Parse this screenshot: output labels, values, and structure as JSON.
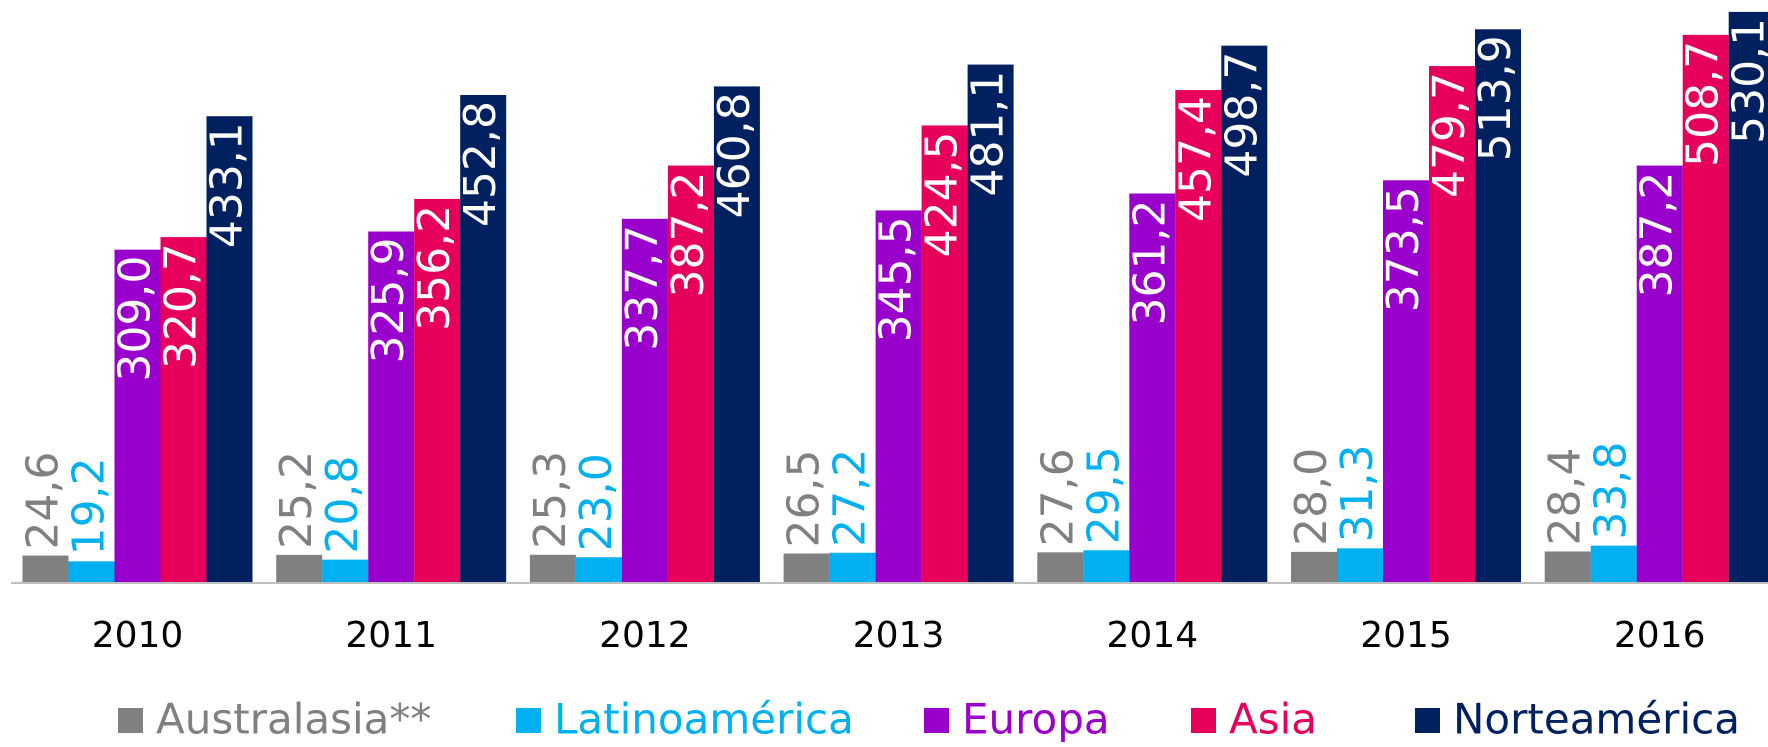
{
  "chart_data": {
    "type": "bar",
    "categories": [
      "2010",
      "2011",
      "2012",
      "2013",
      "2014",
      "2015",
      "2016"
    ],
    "series": [
      {
        "name": "Australasia**",
        "color": "#808080",
        "values": [
          24.6,
          25.2,
          25.3,
          26.5,
          27.6,
          28.0,
          28.4
        ],
        "value_labels": [
          "24,6",
          "25,2",
          "25,3",
          "26,5",
          "27,6",
          "28,0",
          "28,4"
        ]
      },
      {
        "name": "Latinoamérica",
        "color": "#00b0f0",
        "values": [
          19.2,
          20.8,
          23.0,
          27.2,
          29.5,
          31.3,
          33.8
        ],
        "value_labels": [
          "19,2",
          "20,8",
          "23,0",
          "27,2",
          "29,5",
          "31,3",
          "33,8"
        ]
      },
      {
        "name": "Europa",
        "color": "#9900cc",
        "values": [
          309.0,
          325.9,
          337.7,
          345.5,
          361.2,
          373.5,
          387.2
        ],
        "value_labels": [
          "309,0",
          "325,9",
          "337,7",
          "345,5",
          "361,2",
          "373,5",
          "387,2"
        ]
      },
      {
        "name": "Asia",
        "color": "#e6005c",
        "values": [
          320.7,
          356.2,
          387.2,
          424.5,
          457.4,
          479.7,
          508.7
        ],
        "value_labels": [
          "320,7",
          "356,2",
          "387,2",
          "424,5",
          "457,4",
          "479,7",
          "508,7"
        ]
      },
      {
        "name": "Norteamérica",
        "color": "#002060",
        "values": [
          433.1,
          452.8,
          460.8,
          481.1,
          498.7,
          513.9,
          530.1
        ],
        "value_labels": [
          "433,1",
          "452,8",
          "460,8",
          "481,1",
          "498,7",
          "513,9",
          "530,1"
        ]
      }
    ]
  }
}
